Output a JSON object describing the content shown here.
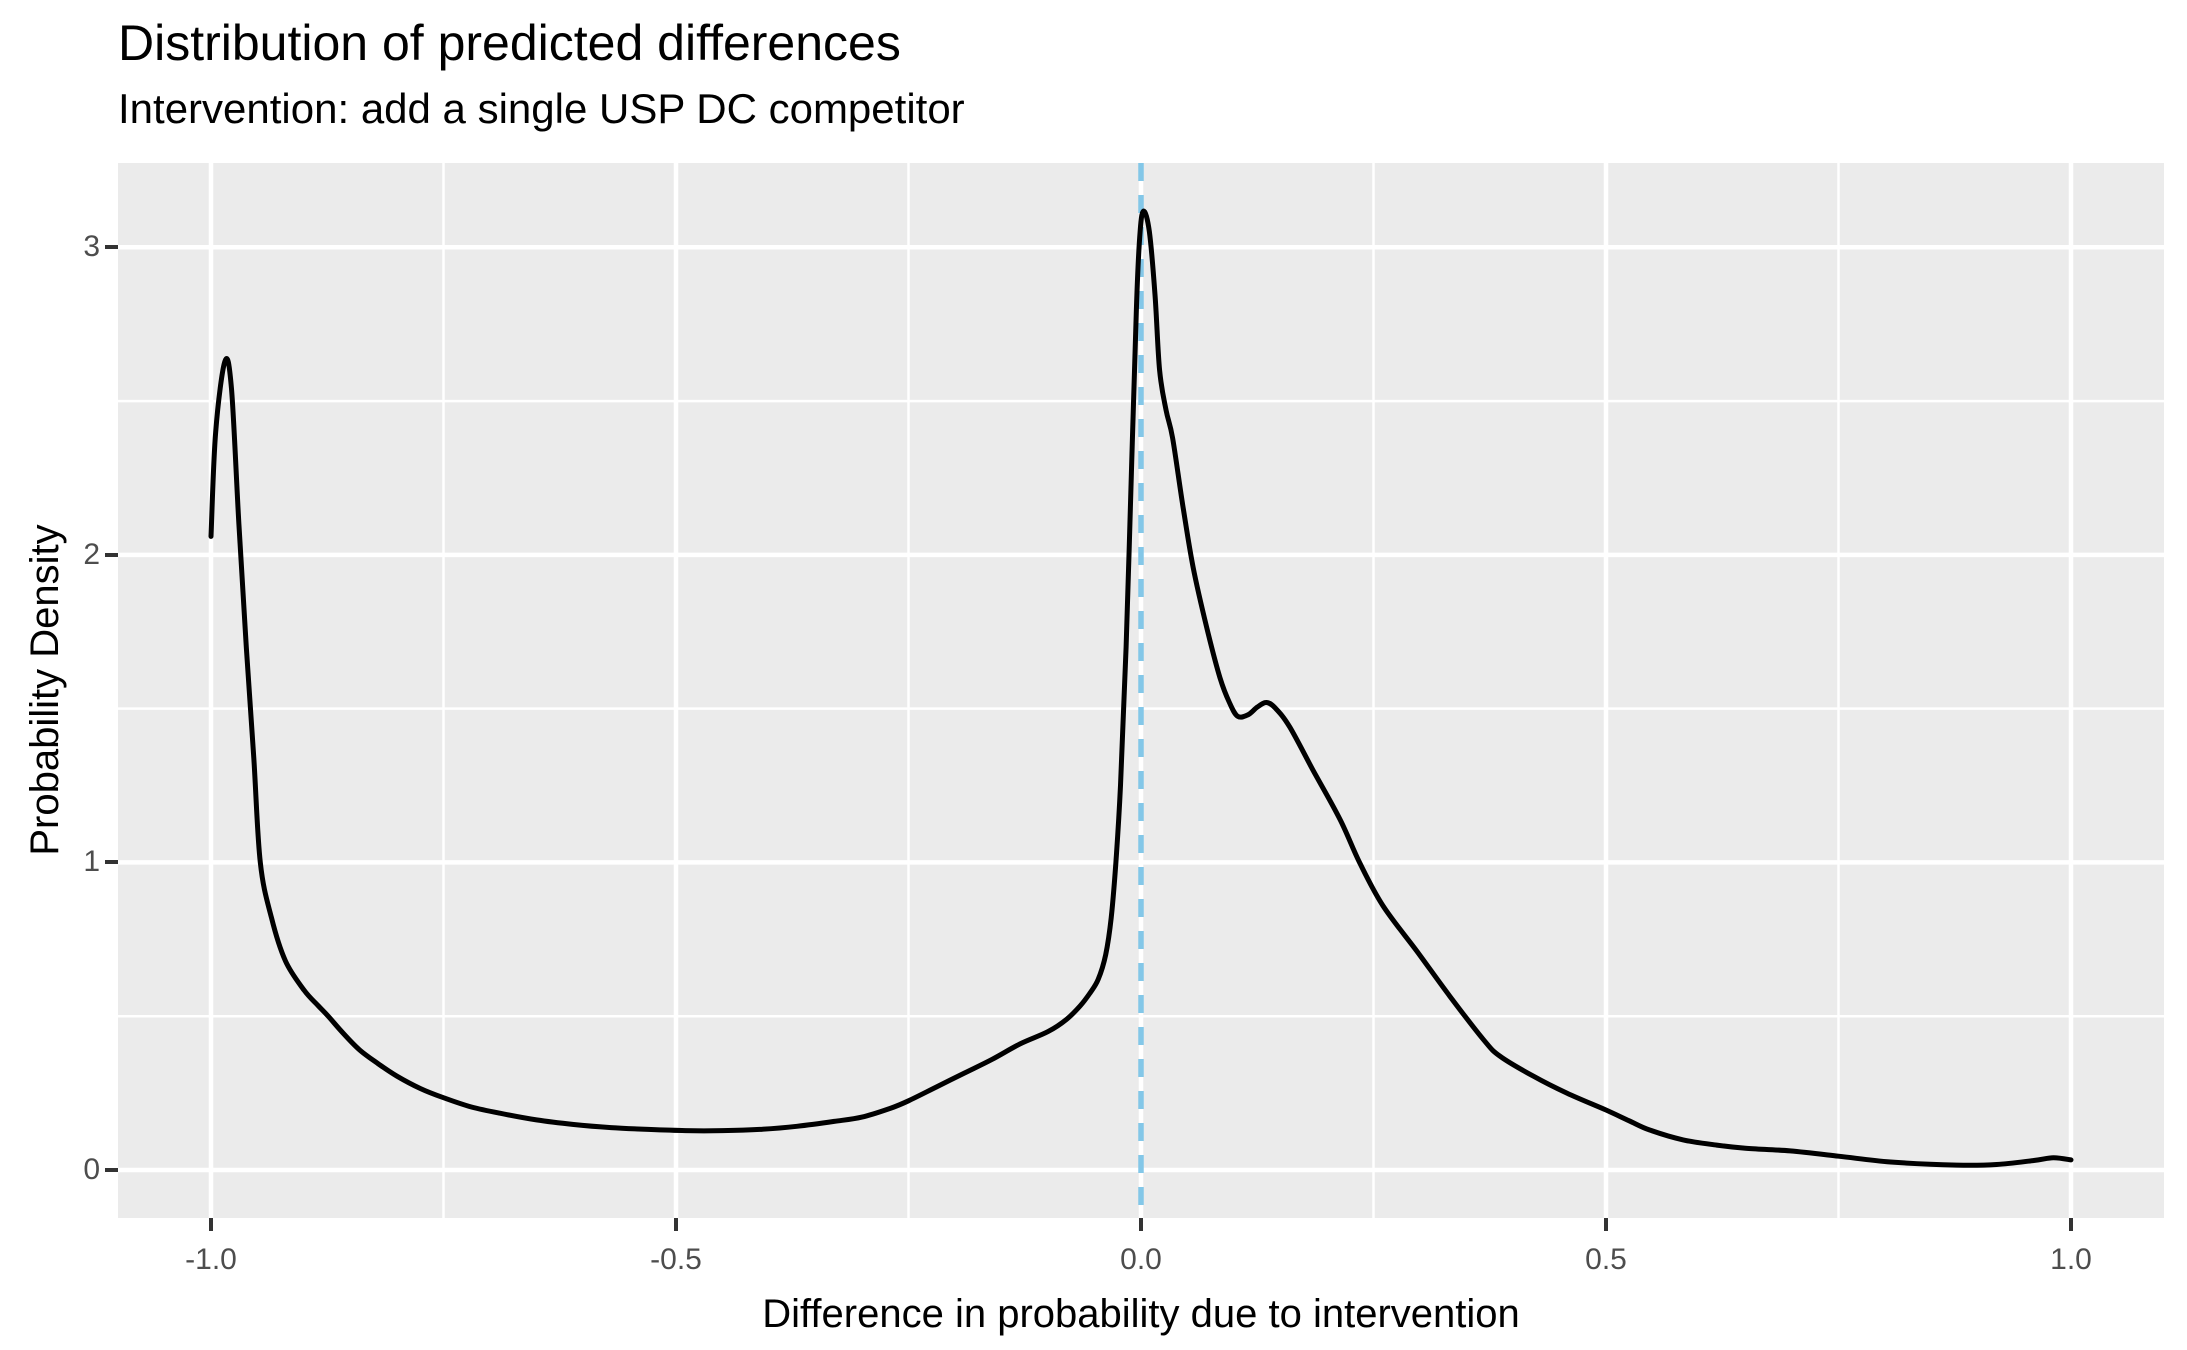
{
  "chart_data": {
    "type": "line",
    "subtype": "density",
    "title": "Distribution of predicted differences",
    "subtitle": "Intervention: add a single USP DC competitor",
    "xlabel": "Difference in probability due to intervention",
    "ylabel": "Probability Density",
    "x_domain": [
      -1.1,
      1.1
    ],
    "y_domain": [
      -0.156,
      3.274
    ],
    "grid": "on",
    "legend": "none",
    "x_ticks": [
      {
        "value": -1.0,
        "label": "-1.0"
      },
      {
        "value": -0.5,
        "label": "-0.5"
      },
      {
        "value": 0.0,
        "label": "0.0"
      },
      {
        "value": 0.5,
        "label": "0.5"
      },
      {
        "value": 1.0,
        "label": "1.0"
      }
    ],
    "y_ticks": [
      {
        "value": 0,
        "label": "0"
      },
      {
        "value": 1,
        "label": "1"
      },
      {
        "value": 2,
        "label": "2"
      },
      {
        "value": 3,
        "label": "3"
      }
    ],
    "x_minor_ticks": [
      -0.75,
      -0.25,
      0.25,
      0.75
    ],
    "y_minor_ticks": [
      0.5,
      1.5,
      2.5
    ],
    "reference_line": {
      "x": 0.0,
      "style": "dashed",
      "color": "#83C7E8",
      "width": 5.5,
      "dash": "18 14"
    },
    "series": [
      {
        "name": "density of predicted differences",
        "color": "#000000",
        "width": 5,
        "points": [
          [
            -1.0,
            2.06
          ],
          [
            -0.995,
            2.4
          ],
          [
            -0.985,
            2.63
          ],
          [
            -0.978,
            2.54
          ],
          [
            -0.97,
            2.1
          ],
          [
            -0.962,
            1.7
          ],
          [
            -0.954,
            1.34
          ],
          [
            -0.947,
            1.0
          ],
          [
            -0.935,
            0.82
          ],
          [
            -0.92,
            0.68
          ],
          [
            -0.9,
            0.585
          ],
          [
            -0.885,
            0.535
          ],
          [
            -0.874,
            0.5
          ],
          [
            -0.858,
            0.445
          ],
          [
            -0.84,
            0.39
          ],
          [
            -0.82,
            0.345
          ],
          [
            -0.8,
            0.305
          ],
          [
            -0.775,
            0.265
          ],
          [
            -0.75,
            0.235
          ],
          [
            -0.72,
            0.205
          ],
          [
            -0.69,
            0.185
          ],
          [
            -0.65,
            0.163
          ],
          [
            -0.61,
            0.148
          ],
          [
            -0.57,
            0.138
          ],
          [
            -0.53,
            0.132
          ],
          [
            -0.49,
            0.128
          ],
          [
            -0.45,
            0.128
          ],
          [
            -0.41,
            0.132
          ],
          [
            -0.37,
            0.142
          ],
          [
            -0.33,
            0.158
          ],
          [
            -0.3,
            0.172
          ],
          [
            -0.27,
            0.2
          ],
          [
            -0.25,
            0.225
          ],
          [
            -0.22,
            0.27
          ],
          [
            -0.19,
            0.315
          ],
          [
            -0.16,
            0.36
          ],
          [
            -0.13,
            0.41
          ],
          [
            -0.1,
            0.45
          ],
          [
            -0.08,
            0.49
          ],
          [
            -0.065,
            0.535
          ],
          [
            -0.055,
            0.575
          ],
          [
            -0.046,
            0.62
          ],
          [
            -0.038,
            0.7
          ],
          [
            -0.032,
            0.82
          ],
          [
            -0.027,
            1.0
          ],
          [
            -0.022,
            1.25
          ],
          [
            -0.016,
            1.7
          ],
          [
            -0.01,
            2.3
          ],
          [
            -0.005,
            2.8
          ],
          [
            -0.001,
            3.05
          ],
          [
            0.003,
            3.118
          ],
          [
            0.009,
            3.05
          ],
          [
            0.015,
            2.85
          ],
          [
            0.02,
            2.6
          ],
          [
            0.027,
            2.47
          ],
          [
            0.034,
            2.38
          ],
          [
            0.045,
            2.16
          ],
          [
            0.056,
            1.96
          ],
          [
            0.071,
            1.76
          ],
          [
            0.085,
            1.6
          ],
          [
            0.095,
            1.52
          ],
          [
            0.104,
            1.475
          ],
          [
            0.115,
            1.48
          ],
          [
            0.125,
            1.505
          ],
          [
            0.135,
            1.52
          ],
          [
            0.145,
            1.5
          ],
          [
            0.16,
            1.44
          ],
          [
            0.185,
            1.3
          ],
          [
            0.214,
            1.14
          ],
          [
            0.235,
            1.0
          ],
          [
            0.26,
            0.86
          ],
          [
            0.297,
            0.71
          ],
          [
            0.332,
            0.565
          ],
          [
            0.368,
            0.425
          ],
          [
            0.386,
            0.37
          ],
          [
            0.422,
            0.305
          ],
          [
            0.458,
            0.25
          ],
          [
            0.5,
            0.195
          ],
          [
            0.525,
            0.16
          ],
          [
            0.547,
            0.13
          ],
          [
            0.583,
            0.098
          ],
          [
            0.619,
            0.081
          ],
          [
            0.65,
            0.071
          ],
          [
            0.698,
            0.062
          ],
          [
            0.75,
            0.045
          ],
          [
            0.806,
            0.026
          ],
          [
            0.877,
            0.016
          ],
          [
            0.92,
            0.018
          ],
          [
            0.96,
            0.031
          ],
          [
            0.981,
            0.04
          ],
          [
            1.0,
            0.033
          ]
        ]
      }
    ],
    "colors": {
      "panel_bg": "#EBEBEB",
      "grid": "#FFFFFF",
      "tick_label": "#4D4D4D",
      "tick_mark": "#333333",
      "text": "#000000"
    }
  }
}
